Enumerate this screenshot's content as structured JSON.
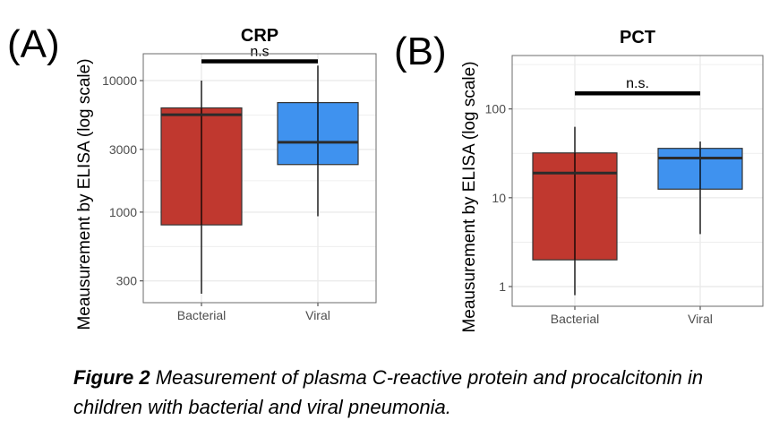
{
  "caption": {
    "label": "Figure 2",
    "text": "Measurement of plasma C-reactive protein and procalcitonin in children with bacterial and viral pneumonia."
  },
  "colors": {
    "bacterial": "#c0382f",
    "viral": "#3f92ef",
    "grid": "#ebebeb",
    "border": "#6b6b6b"
  },
  "chart_data": [
    {
      "panel_label": "(A)",
      "type": "box",
      "title": "CRP",
      "ylabel": "Meausurement by ELISA (log scale)",
      "xlabel": "",
      "y_scale": "log",
      "ylim": [
        205,
        16000
      ],
      "y_ticks": [
        300,
        1000,
        3000,
        10000
      ],
      "y_tick_labels": [
        "300",
        "1000",
        "3000",
        "10000"
      ],
      "grid": true,
      "categories": [
        "Bacterial",
        "Viral"
      ],
      "boxes": [
        {
          "category": "Bacterial",
          "whisker_low": 240,
          "q1": 800,
          "median": 5500,
          "q3": 6200,
          "whisker_high": 10000
        },
        {
          "category": "Viral",
          "whisker_low": 930,
          "q1": 2300,
          "median": 3400,
          "q3": 6800,
          "whisker_high": 13000
        }
      ],
      "annotation": {
        "text": "n.s",
        "y": 14000
      }
    },
    {
      "panel_label": "(B)",
      "type": "box",
      "title": "PCT",
      "ylabel": "Meausurement by ELISA (log scale)",
      "xlabel": "",
      "y_scale": "log",
      "ylim": [
        0.6,
        400
      ],
      "y_ticks": [
        1,
        10,
        100
      ],
      "y_tick_labels": [
        "1",
        "10",
        "100"
      ],
      "grid": true,
      "categories": [
        "Bacterial",
        "Viral"
      ],
      "boxes": [
        {
          "category": "Bacterial",
          "whisker_low": 0.8,
          "q1": 2.0,
          "median": 19,
          "q3": 32,
          "whisker_high": 63
        },
        {
          "category": "Viral",
          "whisker_low": 3.9,
          "q1": 12.5,
          "median": 28,
          "q3": 36,
          "whisker_high": 43
        }
      ],
      "annotation": {
        "text": "n.s.",
        "y": 150
      }
    }
  ]
}
